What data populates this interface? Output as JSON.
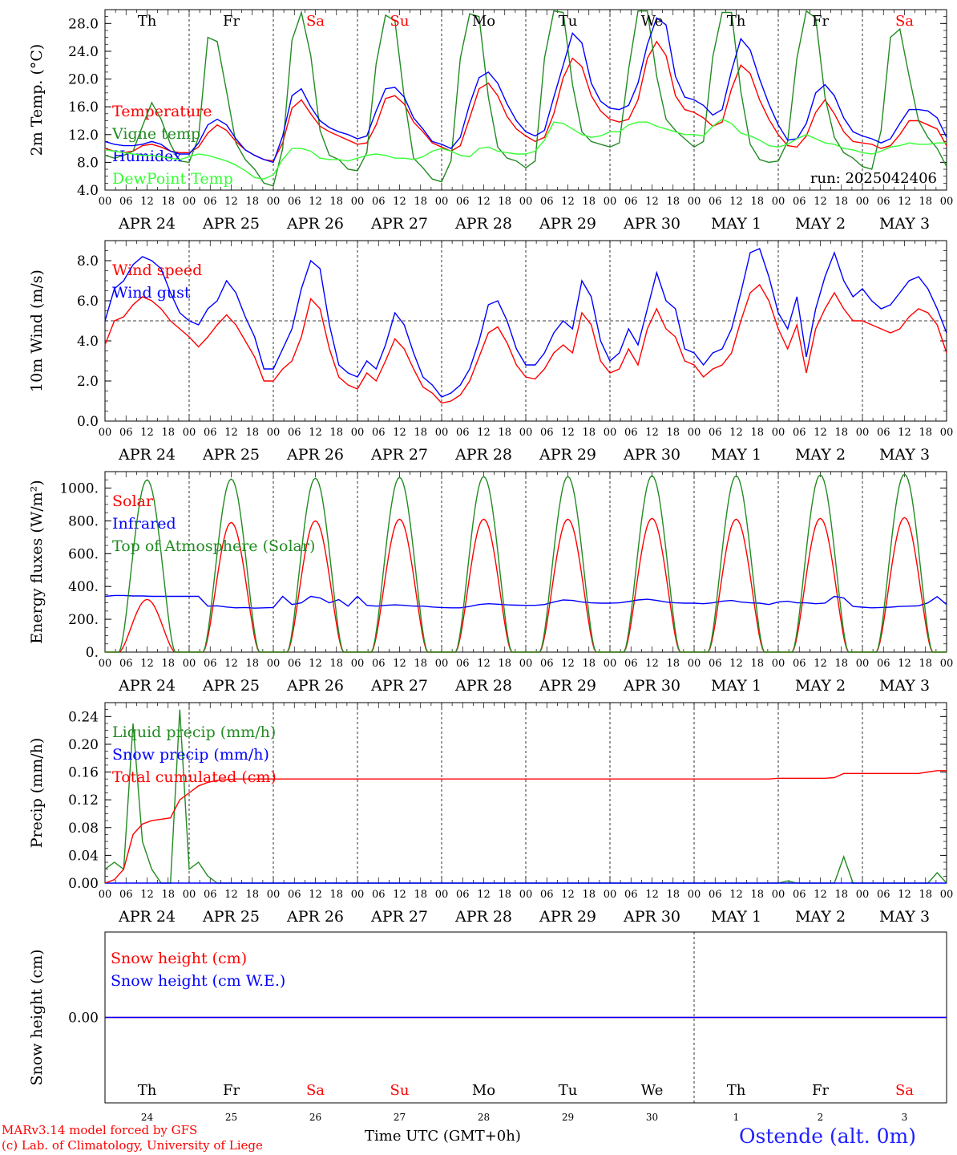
{
  "run_label": "run: 2025042406",
  "footer": {
    "model_line": "MARv3.14 model forced by GFS",
    "credit_line": "(c) Lab. of Climatology, University of Liege",
    "time_label": "Time UTC (GMT+0h)",
    "month_overlay_1": "APR",
    "month_overlay_2": "MAY",
    "station": "Ostende (alt. 0m)"
  },
  "colors": {
    "red": "#ff0000",
    "green": "#228b22",
    "blue": "#0000ff",
    "light_green": "#33ff33",
    "weekend": "#ff0000",
    "weekday": "#000000"
  },
  "days": {
    "weekday_labels": [
      "Th",
      "Fr",
      "Sa",
      "Su",
      "Mo",
      "Tu",
      "We",
      "Th",
      "Fr",
      "Sa"
    ],
    "weekend_flags": [
      false,
      false,
      true,
      true,
      false,
      false,
      false,
      false,
      false,
      true
    ],
    "date_labels": [
      "APR 24",
      "APR 25",
      "APR 26",
      "APR 27",
      "APR 28",
      "APR 29",
      "APR 30",
      "MAY  1",
      "MAY  2",
      "MAY  3"
    ],
    "day_numbers": [
      "24",
      "25",
      "26",
      "27",
      "28",
      "29",
      "30",
      "1",
      "2",
      "3"
    ],
    "hour_labels": [
      "00",
      "06",
      "12",
      "18"
    ],
    "final_hour_label": "00"
  },
  "chart_data": [
    {
      "type": "line",
      "ylabel": "2m Temp. (°C)",
      "ylim": [
        4,
        30
      ],
      "yticks": [
        4,
        8,
        12,
        16,
        20,
        24,
        28
      ],
      "ytick_labels": [
        "4.0",
        "8.0",
        "12.0",
        "16.0",
        "20.0",
        "24.0",
        "28.0"
      ],
      "x": "day-hours 0..240, 3-hourly",
      "legend_location": "left",
      "series": [
        {
          "name": "Temperature",
          "color": "red",
          "values": [
            10.0,
            9.6,
            9.4,
            9.6,
            10.4,
            10.6,
            10.2,
            9.6,
            9.4,
            9.4,
            10.2,
            12.2,
            13.4,
            12.6,
            11.0,
            9.8,
            9.0,
            8.4,
            8.2,
            10.8,
            15.8,
            17.0,
            15.0,
            13.2,
            12.4,
            11.8,
            11.2,
            10.6,
            10.8,
            13.4,
            17.2,
            17.6,
            16.4,
            13.8,
            12.4,
            10.8,
            10.2,
            9.6,
            10.4,
            14.4,
            18.6,
            19.4,
            17.6,
            14.6,
            12.8,
            11.8,
            11.0,
            11.6,
            15.0,
            20.2,
            23.0,
            21.8,
            17.6,
            15.4,
            14.2,
            13.8,
            14.2,
            17.0,
            23.0,
            25.4,
            23.4,
            17.6,
            15.6,
            15.2,
            14.4,
            13.2,
            13.8,
            18.6,
            22.0,
            20.8,
            17.0,
            14.2,
            12.0,
            10.4,
            10.2,
            11.8,
            15.2,
            17.0,
            15.0,
            12.4,
            11.0,
            10.8,
            10.6,
            10.0,
            10.4,
            12.0,
            14.0,
            14.0,
            13.4,
            12.8,
            10.4
          ]
        },
        {
          "name": "Vigne temp",
          "color": "green",
          "values": [
            9.0,
            8.6,
            9.0,
            9.6,
            13.2,
            16.6,
            14.2,
            10.6,
            8.2,
            8.0,
            11.6,
            26.0,
            25.4,
            18.2,
            10.8,
            8.4,
            7.0,
            5.0,
            4.6,
            10.0,
            25.6,
            29.6,
            23.4,
            12.6,
            9.0,
            8.4,
            7.0,
            6.8,
            9.4,
            22.2,
            29.2,
            28.4,
            17.4,
            8.6,
            7.2,
            5.6,
            5.2,
            8.2,
            23.0,
            29.4,
            29.0,
            17.4,
            10.2,
            8.6,
            8.2,
            7.2,
            8.2,
            23.0,
            29.8,
            29.6,
            19.2,
            12.4,
            11.0,
            10.6,
            10.2,
            10.8,
            21.4,
            29.8,
            29.8,
            20.4,
            14.2,
            12.6,
            11.4,
            10.2,
            11.0,
            23.2,
            29.6,
            29.6,
            18.2,
            10.6,
            8.4,
            8.0,
            8.2,
            11.0,
            23.0,
            29.8,
            28.8,
            17.4,
            11.6,
            9.4,
            8.6,
            7.4,
            7.0,
            12.6,
            26.0,
            27.2,
            20.4,
            14.0,
            11.6,
            10.0,
            7.4
          ]
        },
        {
          "name": "Humidex",
          "color": "blue",
          "values": [
            11.0,
            10.6,
            10.4,
            10.4,
            10.6,
            11.0,
            10.6,
            9.6,
            9.2,
            9.2,
            10.8,
            13.4,
            14.2,
            13.4,
            11.4,
            9.8,
            9.0,
            8.4,
            8.0,
            11.8,
            17.6,
            18.6,
            16.0,
            14.0,
            13.0,
            12.4,
            12.0,
            11.4,
            11.8,
            15.4,
            18.6,
            18.8,
            17.4,
            14.4,
            12.8,
            11.0,
            10.6,
            10.0,
            11.6,
            16.4,
            20.2,
            21.0,
            19.4,
            16.4,
            14.0,
            12.4,
            11.8,
            12.6,
            17.4,
            22.0,
            26.6,
            25.2,
            19.4,
            16.8,
            15.8,
            15.6,
            16.2,
            19.4,
            25.0,
            28.8,
            27.8,
            20.4,
            17.4,
            17.0,
            16.2,
            14.8,
            15.6,
            21.2,
            25.8,
            24.2,
            20.0,
            16.4,
            13.4,
            11.2,
            11.4,
            13.6,
            18.0,
            19.2,
            17.6,
            14.4,
            12.4,
            11.8,
            11.4,
            10.8,
            11.4,
            13.6,
            15.6,
            15.6,
            15.4,
            14.4,
            11.6
          ]
        },
        {
          "name": "DewPoint Temp",
          "color": "light_green",
          "values": [
            9.8,
            9.6,
            9.4,
            9.2,
            9.0,
            9.0,
            8.8,
            8.6,
            8.4,
            8.8,
            9.2,
            9.0,
            8.6,
            8.2,
            7.6,
            6.8,
            5.8,
            5.6,
            6.2,
            8.4,
            10.0,
            10.0,
            9.6,
            8.6,
            8.4,
            8.4,
            8.2,
            8.6,
            9.0,
            9.2,
            9.0,
            8.6,
            8.6,
            8.4,
            8.8,
            9.6,
            10.0,
            9.6,
            9.0,
            8.8,
            10.0,
            10.2,
            9.6,
            9.4,
            9.2,
            9.2,
            9.6,
            11.2,
            13.8,
            13.6,
            12.8,
            12.0,
            11.6,
            11.8,
            12.4,
            12.4,
            13.4,
            13.8,
            13.8,
            13.2,
            12.8,
            12.4,
            12.0,
            12.0,
            11.8,
            13.2,
            14.2,
            13.6,
            12.2,
            11.8,
            11.2,
            10.4,
            10.2,
            10.6,
            11.4,
            12.0,
            11.4,
            10.8,
            10.6,
            10.0,
            9.8,
            9.4,
            9.2,
            9.6,
            10.2,
            10.4,
            10.8,
            10.6,
            10.6,
            10.8,
            10.8
          ]
        }
      ]
    },
    {
      "type": "line",
      "ylabel": "10m Wind (m/s)",
      "ylim": [
        0,
        9
      ],
      "yticks": [
        0,
        2,
        4,
        6,
        8
      ],
      "ytick_labels": [
        "0.0",
        "2.0",
        "4.0",
        "6.0",
        "8.0"
      ],
      "reference_line": 5,
      "legend_location": "left",
      "series": [
        {
          "name": "Wind speed",
          "color": "red",
          "values": [
            3.8,
            5.0,
            5.2,
            5.8,
            6.2,
            6.0,
            5.6,
            5.0,
            4.6,
            4.2,
            3.7,
            4.2,
            4.8,
            5.3,
            4.8,
            4.0,
            3.2,
            2.0,
            2.0,
            2.6,
            3.0,
            4.2,
            6.1,
            5.6,
            3.6,
            2.2,
            1.8,
            1.6,
            2.4,
            2.0,
            3.0,
            4.1,
            3.6,
            2.6,
            1.7,
            1.4,
            0.9,
            1.0,
            1.3,
            2.0,
            3.2,
            4.4,
            4.7,
            3.9,
            2.8,
            2.2,
            2.1,
            2.6,
            3.4,
            3.8,
            3.4,
            5.4,
            4.8,
            3.0,
            2.4,
            2.6,
            3.6,
            2.8,
            4.6,
            5.6,
            4.6,
            4.2,
            3.0,
            2.8,
            2.2,
            2.6,
            2.8,
            3.4,
            5.0,
            6.4,
            6.8,
            6.0,
            4.6,
            3.6,
            4.8,
            2.4,
            4.6,
            5.6,
            6.4,
            5.6,
            5.0,
            5.0,
            4.8,
            4.6,
            4.4,
            4.6,
            5.2,
            5.6,
            5.4,
            4.8,
            3.4
          ]
        },
        {
          "name": "Wind gust",
          "color": "blue",
          "values": [
            5.0,
            6.6,
            7.0,
            7.8,
            8.2,
            8.0,
            7.6,
            6.4,
            5.4,
            5.0,
            4.8,
            5.6,
            6.0,
            7.0,
            6.4,
            5.2,
            4.2,
            2.6,
            2.6,
            3.6,
            4.6,
            6.6,
            8.0,
            7.6,
            4.8,
            2.8,
            2.4,
            2.2,
            3.0,
            2.6,
            3.8,
            5.4,
            4.8,
            3.4,
            2.2,
            1.8,
            1.2,
            1.4,
            1.8,
            2.6,
            4.0,
            5.8,
            6.0,
            5.0,
            3.6,
            2.8,
            2.8,
            3.4,
            4.4,
            5.0,
            4.6,
            7.0,
            6.2,
            4.0,
            3.0,
            3.4,
            4.6,
            3.8,
            5.6,
            7.4,
            6.0,
            5.6,
            3.6,
            3.4,
            2.8,
            3.4,
            3.6,
            4.6,
            6.4,
            8.4,
            8.6,
            7.2,
            5.4,
            4.6,
            6.2,
            3.2,
            5.6,
            7.2,
            8.4,
            7.0,
            6.2,
            6.6,
            6.0,
            5.6,
            5.8,
            6.4,
            7.0,
            7.2,
            6.6,
            5.6,
            4.4
          ]
        }
      ]
    },
    {
      "type": "line",
      "ylabel": "Energy fluxes (W/m²)",
      "ylim": [
        0,
        1100
      ],
      "yticks": [
        0,
        200,
        400,
        600,
        800,
        1000
      ],
      "ytick_labels": [
        "0.",
        "200.",
        "400.",
        "600.",
        "800.",
        "1000."
      ],
      "legend_location": "left",
      "series": [
        {
          "name": "Solar",
          "color": "red",
          "solar_peaks": [
            320,
            790,
            800,
            810,
            810,
            810,
            815,
            810,
            815,
            820
          ],
          "toa_scale": false
        },
        {
          "name": "Infrared",
          "color": "blue",
          "values": [
            340,
            345,
            345,
            342,
            342,
            340,
            340,
            340,
            340,
            340,
            340,
            280,
            282,
            275,
            270,
            272,
            268,
            270,
            272,
            340,
            290,
            300,
            340,
            330,
            300,
            320,
            280,
            340,
            285,
            280,
            285,
            288,
            285,
            280,
            280,
            275,
            272,
            270,
            270,
            278,
            290,
            295,
            292,
            288,
            286,
            285,
            285,
            290,
            305,
            318,
            315,
            305,
            300,
            298,
            298,
            300,
            308,
            318,
            322,
            315,
            305,
            300,
            298,
            298,
            295,
            300,
            310,
            315,
            305,
            300,
            298,
            290,
            305,
            310,
            300,
            300,
            295,
            298,
            340,
            330,
            278,
            274,
            270,
            272,
            274,
            278,
            280,
            282,
            300,
            338,
            290
          ]
        },
        {
          "name": "Top of Atmosphere (Solar)",
          "color": "green",
          "solar_peaks": [
            1050,
            1055,
            1060,
            1065,
            1070,
            1070,
            1075,
            1075,
            1080,
            1085
          ]
        }
      ]
    },
    {
      "type": "line",
      "ylabel": "Precip (mm/h)",
      "ylim": [
        0,
        0.26
      ],
      "yticks": [
        0,
        0.04,
        0.08,
        0.12,
        0.16,
        0.2,
        0.24
      ],
      "ytick_labels": [
        "0.00",
        "0.04",
        "0.08",
        "0.12",
        "0.16",
        "0.20",
        "0.24"
      ],
      "legend_location": "left",
      "series": [
        {
          "name": "Liquid precip (mm/h)",
          "color": "green",
          "values": [
            0.02,
            0.03,
            0.02,
            0.23,
            0.06,
            0.02,
            0.0,
            0.0,
            0.25,
            0.02,
            0.03,
            0.01,
            0.0,
            0.0,
            0.0,
            0.0,
            0.0,
            0.0,
            0.0,
            0.0,
            0.0,
            0.0,
            0.0,
            0.0,
            0.0,
            0.0,
            0.0,
            0.0,
            0.0,
            0.0,
            0.0,
            0.0,
            0.0,
            0.0,
            0.0,
            0.0,
            0.0,
            0.0,
            0.0,
            0.0,
            0.0,
            0.0,
            0.0,
            0.0,
            0.0,
            0.0,
            0.0,
            0.0,
            0.0,
            0.0,
            0.0,
            0.0,
            0.0,
            0.0,
            0.0,
            0.0,
            0.0,
            0.0,
            0.0,
            0.0,
            0.0,
            0.0,
            0.0,
            0.0,
            0.0,
            0.0,
            0.0,
            0.0,
            0.0,
            0.0,
            0.0,
            0.0,
            0.0,
            0.003,
            0.0,
            0.0,
            0.0,
            0.0,
            0.0,
            0.038,
            0.0,
            0.0,
            0.0,
            0.0,
            0.0,
            0.0,
            0.0,
            0.0,
            0.0,
            0.015,
            0.0
          ]
        },
        {
          "name": "Snow precip (mm/h)",
          "color": "blue",
          "values_constant": 0.0
        },
        {
          "name": "Total cumulated (cm)",
          "color": "red",
          "values": [
            0.0,
            0.005,
            0.02,
            0.07,
            0.085,
            0.09,
            0.092,
            0.094,
            0.12,
            0.13,
            0.14,
            0.145,
            0.148,
            0.149,
            0.15,
            0.15,
            0.15,
            0.15,
            0.15,
            0.15,
            0.15,
            0.15,
            0.15,
            0.15,
            0.15,
            0.15,
            0.15,
            0.15,
            0.15,
            0.15,
            0.15,
            0.15,
            0.15,
            0.15,
            0.15,
            0.15,
            0.15,
            0.15,
            0.15,
            0.15,
            0.15,
            0.15,
            0.15,
            0.15,
            0.15,
            0.15,
            0.15,
            0.15,
            0.15,
            0.15,
            0.15,
            0.15,
            0.15,
            0.15,
            0.15,
            0.15,
            0.15,
            0.15,
            0.15,
            0.15,
            0.15,
            0.15,
            0.15,
            0.15,
            0.15,
            0.15,
            0.15,
            0.15,
            0.15,
            0.15,
            0.15,
            0.15,
            0.151,
            0.151,
            0.151,
            0.151,
            0.151,
            0.151,
            0.152,
            0.158,
            0.158,
            0.158,
            0.158,
            0.158,
            0.158,
            0.158,
            0.158,
            0.158,
            0.16,
            0.162,
            0.162
          ]
        }
      ]
    },
    {
      "type": "line",
      "ylabel": "Snow height (cm)",
      "yticks": [
        0
      ],
      "ytick_labels": [
        "0.00"
      ],
      "legend_location": "left",
      "series": [
        {
          "name": "Snow height (cm)",
          "color": "red",
          "values_constant": 0.0
        },
        {
          "name": "Snow height (cm W.E.)",
          "color": "blue",
          "values_constant": 0.0
        }
      ]
    }
  ]
}
